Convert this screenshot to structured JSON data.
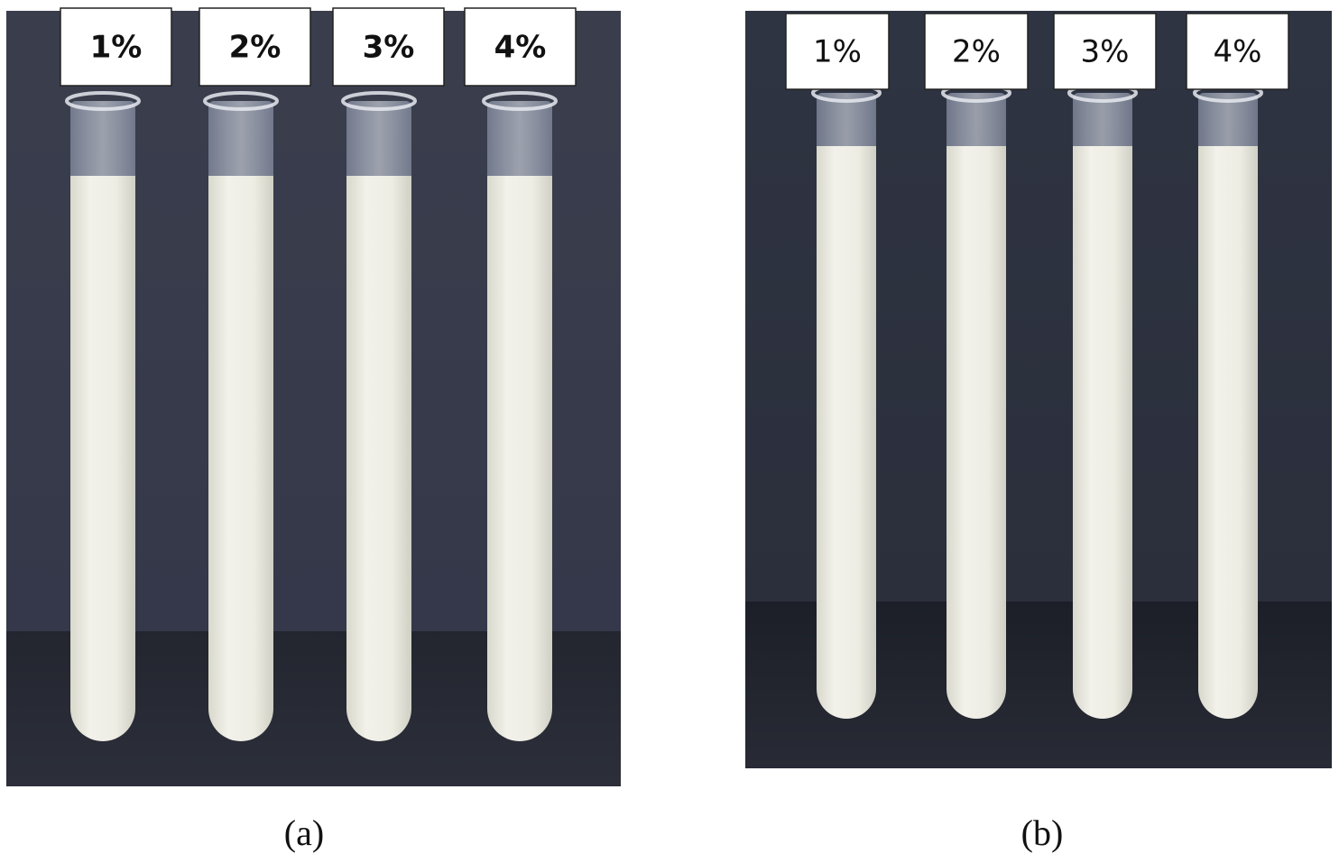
{
  "panels": [
    {
      "caption": "(a)",
      "labels": [
        "1%",
        "2%",
        "3%",
        "4%"
      ]
    },
    {
      "caption": "(b)",
      "labels": [
        "1%",
        "2%",
        "3%",
        "4%"
      ]
    }
  ]
}
